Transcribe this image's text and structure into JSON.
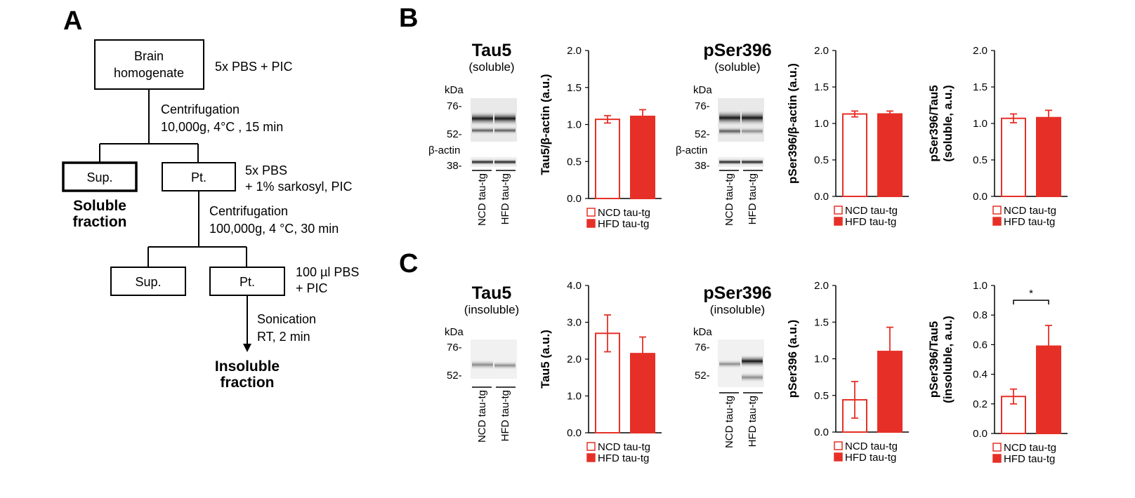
{
  "panels": {
    "a": "A",
    "b": "B",
    "c": "C"
  },
  "flowchart": {
    "brain_line1": "Brain",
    "brain_line2": "homogenate",
    "step1_note": "5x PBS + PIC",
    "cent1_line1": "Centrifugation",
    "cent1_line2": "10,000g, 4°C , 15 min",
    "sup1": "Sup.",
    "pt1": "Pt.",
    "step2_line1": "5x PBS",
    "step2_line2": "+ 1% sarkosyl, PIC",
    "soluble_line1": "Soluble",
    "soluble_line2": "fraction",
    "cent2_line1": "Centrifugation",
    "cent2_line2": "100,000g, 4 °C, 30 min",
    "sup2": "Sup.",
    "pt2": "Pt.",
    "step3_line1": "100 µl PBS",
    "step3_line2": "+ PIC",
    "son_line1": "Sonication",
    "son_line2": "RT, 2 min",
    "insoluble_line1": "Insoluble",
    "insoluble_line2": "fraction"
  },
  "blots": [
    {
      "title": "Tau5",
      "sub": "(soluble)",
      "kda": "kDa",
      "m1": "76-",
      "m2": "52-",
      "actin": "β-actin",
      "m3": "38-"
    },
    {
      "title": "pSer396",
      "sub": "(soluble)",
      "kda": "kDa",
      "m1": "76-",
      "m2": "52-",
      "actin": "β-actin",
      "m3": "38-"
    },
    {
      "title": "Tau5",
      "sub": "(insoluble)",
      "kda": "kDa",
      "m1": "76-",
      "m2": "52-"
    },
    {
      "title": "pSer396",
      "sub": "(insoluble)",
      "kda": "kDa",
      "m1": "76-",
      "m2": "52-"
    }
  ],
  "lane_labels": [
    "NCD tau-tg",
    "HFD tau-tg"
  ],
  "colors": {
    "ncd": "#e63027",
    "hfd": "#e63027",
    "axis": "#000000"
  },
  "chart_data": [
    {
      "type": "bar",
      "ylabel": "Tau5/β-actin (a.u.)",
      "ylim": [
        0,
        2.0
      ],
      "yticks": [
        "0.0",
        "0.5",
        "1.0",
        "1.5",
        "2.0"
      ],
      "series": [
        {
          "name": "NCD tau-tg",
          "values": [
            1.07
          ],
          "err": [
            0.05
          ]
        },
        {
          "name": "HFD tau-tg",
          "values": [
            1.11
          ],
          "err": [
            0.09
          ]
        }
      ]
    },
    {
      "type": "bar",
      "ylabel": "pSer396/β-actin (a.u.)",
      "ylim": [
        0,
        2.0
      ],
      "yticks": [
        "0.0",
        "0.5",
        "1.0",
        "1.5",
        "2.0"
      ],
      "series": [
        {
          "name": "NCD tau-tg",
          "values": [
            1.13
          ],
          "err": [
            0.04
          ]
        },
        {
          "name": "HFD tau-tg",
          "values": [
            1.13
          ],
          "err": [
            0.04
          ]
        }
      ]
    },
    {
      "type": "bar",
      "ylabel": "pSer396/Tau5",
      "ylabel2": "(soluble, a.u.)",
      "ylim": [
        0,
        2.0
      ],
      "yticks": [
        "0.0",
        "0.5",
        "1.0",
        "1.5",
        "2.0"
      ],
      "series": [
        {
          "name": "NCD tau-tg",
          "values": [
            1.07
          ],
          "err": [
            0.06
          ]
        },
        {
          "name": "HFD tau-tg",
          "values": [
            1.08
          ],
          "err": [
            0.1
          ]
        }
      ]
    },
    {
      "type": "bar",
      "ylabel": "Tau5 (a.u.)",
      "ylim": [
        0,
        4.0
      ],
      "yticks": [
        "0.0",
        "1.0",
        "2.0",
        "3.0",
        "4.0"
      ],
      "series": [
        {
          "name": "NCD tau-tg",
          "values": [
            2.7
          ],
          "err": [
            0.5
          ]
        },
        {
          "name": "HFD tau-tg",
          "values": [
            2.15
          ],
          "err": [
            0.45
          ]
        }
      ]
    },
    {
      "type": "bar",
      "ylabel": "pSer396 (a.u.)",
      "ylim": [
        0,
        2.0
      ],
      "yticks": [
        "0.0",
        "0.5",
        "1.0",
        "1.5",
        "2.0"
      ],
      "series": [
        {
          "name": "NCD tau-tg",
          "values": [
            0.44
          ],
          "err": [
            0.25
          ]
        },
        {
          "name": "HFD tau-tg",
          "values": [
            1.1
          ],
          "err": [
            0.33
          ]
        }
      ]
    },
    {
      "type": "bar",
      "ylabel": "pSer396/Tau5",
      "ylabel2": "(insoluble, a.u.)",
      "ylim": [
        0,
        1.0
      ],
      "yticks": [
        "0.0",
        "0.2",
        "0.4",
        "0.6",
        "0.8",
        "1.0"
      ],
      "significance": "*",
      "series": [
        {
          "name": "NCD tau-tg",
          "values": [
            0.25
          ],
          "err": [
            0.05
          ]
        },
        {
          "name": "HFD tau-tg",
          "values": [
            0.59
          ],
          "err": [
            0.14
          ]
        }
      ]
    }
  ]
}
